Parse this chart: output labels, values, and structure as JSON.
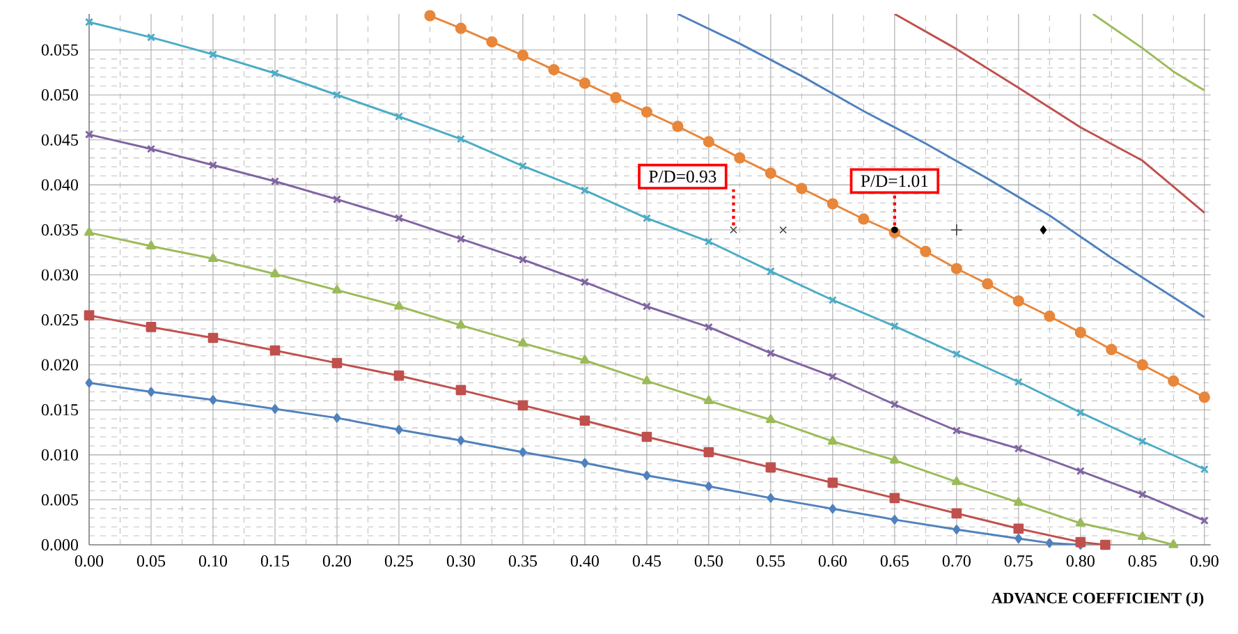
{
  "chart_data": {
    "type": "line",
    "xlabel": "ADVANCE COEFFICIENT (J)",
    "xlim": [
      0,
      0.905
    ],
    "ylim": [
      0,
      0.059
    ],
    "xticks": [
      {
        "value": 0,
        "label": "0.00"
      },
      {
        "value": 0.05,
        "label": "0.05"
      },
      {
        "value": 0.1,
        "label": "0.10"
      },
      {
        "value": 0.15,
        "label": "0.15"
      },
      {
        "value": 0.2,
        "label": "0.20"
      },
      {
        "value": 0.25,
        "label": "0.25"
      },
      {
        "value": 0.3,
        "label": "0.30"
      },
      {
        "value": 0.35,
        "label": "0.35"
      },
      {
        "value": 0.4,
        "label": "0.40"
      },
      {
        "value": 0.45,
        "label": "0.45"
      },
      {
        "value": 0.5,
        "label": "0.50"
      },
      {
        "value": 0.55,
        "label": "0.55"
      },
      {
        "value": 0.6,
        "label": "0.60"
      },
      {
        "value": 0.65,
        "label": "0.65"
      },
      {
        "value": 0.7,
        "label": "0.70"
      },
      {
        "value": 0.75,
        "label": "0.75"
      },
      {
        "value": 0.8,
        "label": "0.80"
      },
      {
        "value": 0.85,
        "label": "0.85"
      },
      {
        "value": 0.9,
        "label": "0.90"
      }
    ],
    "yticks": [
      {
        "value": 0,
        "label": "0.000"
      },
      {
        "value": 0.005,
        "label": "0.005"
      },
      {
        "value": 0.01,
        "label": "0.010"
      },
      {
        "value": 0.015,
        "label": "0.015"
      },
      {
        "value": 0.02,
        "label": "0.020"
      },
      {
        "value": 0.025,
        "label": "0.025"
      },
      {
        "value": 0.03,
        "label": "0.030"
      },
      {
        "value": 0.035,
        "label": "0.035"
      },
      {
        "value": 0.04,
        "label": "0.040"
      },
      {
        "value": 0.045,
        "label": "0.045"
      },
      {
        "value": 0.05,
        "label": "0.050"
      },
      {
        "value": 0.055,
        "label": "0.055"
      }
    ],
    "grid": true,
    "legend": false,
    "series": [
      {
        "color": "#4f81bd",
        "marker": "diamond",
        "x": [
          0,
          0.05,
          0.1,
          0.15,
          0.2,
          0.25,
          0.3,
          0.35,
          0.4,
          0.45,
          0.5,
          0.55,
          0.6,
          0.65,
          0.7,
          0.75,
          0.775,
          0.8
        ],
        "values": [
          0.018,
          0.017,
          0.0161,
          0.0151,
          0.0141,
          0.0128,
          0.0116,
          0.0103,
          0.0091,
          0.0077,
          0.0065,
          0.0052,
          0.004,
          0.0028,
          0.0017,
          0.0007,
          0.0002,
          0
        ]
      },
      {
        "color": "#c0504d",
        "marker": "square",
        "x": [
          0,
          0.05,
          0.1,
          0.15,
          0.2,
          0.25,
          0.3,
          0.35,
          0.4,
          0.45,
          0.5,
          0.55,
          0.6,
          0.65,
          0.7,
          0.75,
          0.8,
          0.82
        ],
        "values": [
          0.0255,
          0.0242,
          0.023,
          0.0216,
          0.0202,
          0.0188,
          0.0172,
          0.0155,
          0.0138,
          0.012,
          0.0103,
          0.0086,
          0.0069,
          0.0052,
          0.0035,
          0.0018,
          0.0003,
          0
        ]
      },
      {
        "color": "#9bbb59",
        "marker": "triangle",
        "x": [
          0,
          0.05,
          0.1,
          0.15,
          0.2,
          0.25,
          0.3,
          0.35,
          0.4,
          0.45,
          0.5,
          0.55,
          0.6,
          0.65,
          0.7,
          0.75,
          0.8,
          0.85,
          0.875
        ],
        "values": [
          0.0347,
          0.0332,
          0.0318,
          0.0301,
          0.0283,
          0.0265,
          0.0244,
          0.0224,
          0.0205,
          0.0182,
          0.016,
          0.0139,
          0.0115,
          0.0094,
          0.007,
          0.0047,
          0.0024,
          0.0009,
          0
        ]
      },
      {
        "color": "#8064a2",
        "marker": "cross",
        "x": [
          0,
          0.05,
          0.1,
          0.15,
          0.2,
          0.25,
          0.3,
          0.35,
          0.4,
          0.45,
          0.5,
          0.55,
          0.6,
          0.65,
          0.7,
          0.75,
          0.8,
          0.85,
          0.9
        ],
        "values": [
          0.0456,
          0.044,
          0.0422,
          0.0404,
          0.0384,
          0.0363,
          0.034,
          0.0317,
          0.0292,
          0.0265,
          0.0242,
          0.0213,
          0.0187,
          0.0156,
          0.0127,
          0.0107,
          0.0082,
          0.0056,
          0.0027
        ]
      },
      {
        "color": "#4bacc6",
        "marker": "cross",
        "x": [
          0,
          0.05,
          0.1,
          0.15,
          0.2,
          0.25,
          0.3,
          0.35,
          0.4,
          0.45,
          0.5,
          0.55,
          0.6,
          0.65,
          0.7,
          0.75,
          0.8,
          0.85,
          0.9
        ],
        "values": [
          0.0581,
          0.0564,
          0.0545,
          0.0524,
          0.05,
          0.0476,
          0.0451,
          0.0421,
          0.0394,
          0.0363,
          0.0337,
          0.0304,
          0.0272,
          0.0243,
          0.0212,
          0.0181,
          0.0147,
          0.0115,
          0.0084
        ]
      },
      {
        "color": "#e8863a",
        "marker": "circle",
        "x": [
          0.275,
          0.3,
          0.325,
          0.35,
          0.375,
          0.4,
          0.425,
          0.45,
          0.475,
          0.5,
          0.525,
          0.55,
          0.575,
          0.6,
          0.625,
          0.65,
          0.675,
          0.7,
          0.725,
          0.75,
          0.775,
          0.8,
          0.825,
          0.85,
          0.875,
          0.9
        ],
        "values": [
          0.0588,
          0.0574,
          0.0559,
          0.0544,
          0.0528,
          0.0513,
          0.0497,
          0.0481,
          0.0465,
          0.0448,
          0.043,
          0.0413,
          0.0396,
          0.0379,
          0.0362,
          0.0347,
          0.0326,
          0.0307,
          0.029,
          0.0271,
          0.0254,
          0.0236,
          0.0217,
          0.02,
          0.0182,
          0.0164
        ]
      },
      {
        "color": "#4f81bd",
        "marker": "none",
        "x": [
          0.475,
          0.525,
          0.575,
          0.625,
          0.675,
          0.725,
          0.775,
          0.825,
          0.875,
          0.9
        ],
        "values": [
          0.059,
          0.0557,
          0.0521,
          0.0482,
          0.0446,
          0.0407,
          0.0366,
          0.0319,
          0.0275,
          0.0253
        ]
      },
      {
        "color": "#c0504d",
        "marker": "none",
        "x": [
          0.65,
          0.7,
          0.75,
          0.8,
          0.85,
          0.9
        ],
        "values": [
          0.059,
          0.0551,
          0.0508,
          0.0464,
          0.0427,
          0.0369
        ]
      },
      {
        "color": "#9bbb59",
        "marker": "none",
        "x": [
          0.81,
          0.85,
          0.875,
          0.9
        ],
        "values": [
          0.059,
          0.0552,
          0.0526,
          0.0505
        ]
      },
      {
        "type": "scatter",
        "color": "#404040",
        "marker": "cross",
        "x": [
          0.52
        ],
        "values": [
          0.035
        ]
      },
      {
        "type": "scatter",
        "color": "#404040",
        "marker": "cross",
        "x": [
          0.56
        ],
        "values": [
          0.035
        ]
      },
      {
        "type": "scatter",
        "color": "#000000",
        "marker": "circle",
        "x": [
          0.65
        ],
        "values": [
          0.035
        ]
      },
      {
        "type": "scatter",
        "color": "#404040",
        "marker": "plus",
        "x": [
          0.7
        ],
        "values": [
          0.035
        ]
      },
      {
        "type": "scatter",
        "color": "#000000",
        "marker": "diamond",
        "x": [
          0.77
        ],
        "values": [
          0.035
        ]
      }
    ],
    "annotations": [
      {
        "text": "P/D=0.93",
        "x": 0.52,
        "y": 0.035
      },
      {
        "text": "P/D=1.01",
        "x": 0.65,
        "y": 0.035
      }
    ]
  }
}
